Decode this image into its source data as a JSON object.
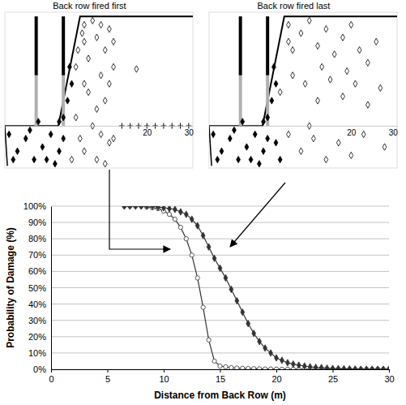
{
  "chart_data": [
    {
      "type": "scatter",
      "title": "Back row fired first",
      "xlim": [
        -14,
        31
      ],
      "ylim": [
        -10,
        27
      ],
      "xticks": [
        20,
        30
      ],
      "tick_labels": "x",
      "series": [
        {
          "marker": "diamond-open",
          "color": "#000000",
          "x": [
            4.5,
            3.5,
            3,
            5,
            5,
            6,
            7,
            8,
            9,
            10,
            11,
            6,
            8,
            10,
            11,
            7,
            9,
            11,
            5,
            8,
            10,
            12,
            12,
            3,
            5,
            9,
            2,
            4,
            17.5,
            12
          ],
          "values": [
            22,
            18,
            14,
            24,
            20,
            16,
            25,
            21,
            12,
            18,
            23,
            8,
            4,
            6,
            10,
            0,
            -2,
            -4,
            -6,
            -8,
            -9,
            -3,
            14,
            2,
            10,
            24,
            -8,
            -3,
            13.5,
            20
          ]
        },
        {
          "marker": "diamond",
          "color": "#000000",
          "x": [
            -13,
            -11,
            -9,
            -7,
            -5,
            -3,
            -12,
            -8,
            -4,
            -1,
            0,
            1,
            2,
            -1,
            1.5,
            0,
            -6,
            -2
          ],
          "values": [
            -2,
            -6,
            -3,
            -8,
            -5,
            -2,
            -8,
            -1,
            -8,
            -6,
            2,
            6,
            10,
            1,
            14,
            -3,
            1,
            -9
          ]
        },
        {
          "marker": "plus",
          "color": "#000000",
          "x": [
            14,
            16,
            18,
            20,
            22,
            24,
            26,
            28,
            30
          ],
          "values": [
            0,
            0,
            0,
            0,
            0,
            0,
            0,
            0,
            0
          ]
        }
      ]
    },
    {
      "type": "scatter",
      "title": "Back row fired last",
      "xlim": [
        -14,
        31
      ],
      "ylim": [
        -10,
        27
      ],
      "xticks": [
        20,
        30
      ],
      "tick_labels": "x",
      "series": [
        {
          "marker": "diamond-open",
          "color": "#000000",
          "x": [
            5,
            5,
            6,
            8,
            10,
            12,
            14,
            16,
            18,
            20,
            22,
            24,
            26,
            3,
            6,
            9,
            12,
            15,
            18,
            21,
            24,
            5,
            8,
            11,
            14,
            17,
            20,
            23,
            13,
            19,
            27,
            10,
            28
          ],
          "values": [
            20,
            24,
            18,
            22,
            25,
            19,
            23,
            17,
            21,
            24,
            18,
            15,
            20,
            8,
            12,
            10,
            6,
            11,
            7,
            10,
            5,
            -2,
            -6,
            -3,
            -8,
            -4,
            -7,
            -2,
            14,
            13,
            9,
            0,
            -5
          ]
        },
        {
          "marker": "diamond",
          "color": "#000000",
          "x": [
            -13,
            -11,
            -9,
            -7,
            -5,
            -3,
            -12,
            -8,
            -4,
            -1,
            0,
            1,
            2,
            -1,
            1.5,
            0,
            -6,
            -2,
            2,
            3
          ],
          "values": [
            -2,
            -6,
            -3,
            -8,
            -5,
            -2,
            -8,
            -1,
            -8,
            -6,
            2,
            6,
            10,
            1,
            14,
            -3,
            1,
            -9,
            -4,
            -8
          ]
        }
      ]
    },
    {
      "type": "line",
      "xlabel": "Distance from Back Row (m)",
      "ylabel": "Probability of Damage (%)",
      "xlim": [
        0,
        30
      ],
      "ylim": [
        0,
        100
      ],
      "xticks": [
        0,
        5,
        10,
        15,
        20,
        25,
        30
      ],
      "yticks": [
        {
          "value": 0,
          "label": "0%"
        },
        {
          "value": 10,
          "label": "10%"
        },
        {
          "value": 20,
          "label": "20%"
        },
        {
          "value": 30,
          "label": "30%"
        },
        {
          "value": 40,
          "label": "40%"
        },
        {
          "value": 50,
          "label": "50%"
        },
        {
          "value": 60,
          "label": "60%"
        },
        {
          "value": 70,
          "label": "70%"
        },
        {
          "value": 80,
          "label": "80%"
        },
        {
          "value": 90,
          "label": "90%"
        },
        {
          "value": 100,
          "label": "100%"
        }
      ],
      "grid": true,
      "x": [
        6.5,
        7,
        7.5,
        8,
        8.5,
        9,
        9.5,
        10,
        10.5,
        11,
        11.5,
        12,
        12.5,
        13,
        13.5,
        14,
        14.5,
        15,
        15.5,
        16,
        16.5,
        17,
        17.5,
        18,
        18.5,
        19,
        19.5,
        20,
        20.5,
        21,
        21.5,
        22,
        22.5,
        23,
        23.5,
        24,
        24.5,
        25,
        25.5,
        26,
        26.5,
        27,
        27.5,
        28,
        28.5,
        29,
        29.5,
        30
      ],
      "series": [
        {
          "marker": "circle-open",
          "color": "#333333",
          "values": [
            100,
            100,
            100,
            100,
            99.5,
            99,
            98.5,
            97,
            95,
            92,
            87,
            80,
            70,
            56,
            38,
            18,
            5,
            2,
            1.5,
            1,
            0.8,
            0.6,
            0.5,
            0.4,
            0.3,
            0.2,
            0.2,
            0.1,
            0,
            0,
            0,
            0,
            0,
            0,
            0,
            0,
            0,
            0,
            0,
            0,
            0,
            0,
            0,
            0,
            0,
            0,
            0,
            0
          ]
        },
        {
          "marker": "diamond",
          "color": "#333333",
          "values": [
            100,
            100,
            100,
            100,
            100,
            100,
            99.5,
            99,
            98.5,
            98,
            96.5,
            95,
            92,
            88,
            82,
            75,
            68,
            62,
            56,
            49,
            42,
            35,
            28,
            22,
            17,
            13,
            10,
            7,
            5.5,
            4,
            3.2,
            2.5,
            2,
            1.5,
            1.2,
            1,
            0.7,
            0.5,
            0.4,
            0.3,
            0.2,
            0.1,
            0,
            0,
            0,
            0,
            0,
            0
          ]
        }
      ]
    }
  ]
}
